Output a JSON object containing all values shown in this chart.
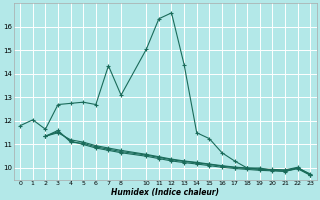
{
  "xlabel": "Humidex (Indice chaleur)",
  "bg_color": "#b3e8e8",
  "grid_color": "#ffffff",
  "line_color": "#1a6b5a",
  "xlim": [
    -0.5,
    23.5
  ],
  "ylim": [
    9.5,
    17.0
  ],
  "xtick_positions": [
    0,
    1,
    2,
    3,
    4,
    5,
    6,
    7,
    8,
    10,
    11,
    12,
    13,
    14,
    15,
    16,
    17,
    18,
    19,
    20,
    21,
    22,
    23
  ],
  "xtick_labels": [
    "0",
    "1",
    "2",
    "3",
    "4",
    "5",
    "6",
    "7",
    "8",
    "10",
    "11",
    "12",
    "13",
    "14",
    "15",
    "16",
    "17",
    "18",
    "19",
    "20",
    "21",
    "22",
    "23"
  ],
  "ytick_positions": [
    10,
    11,
    12,
    13,
    14,
    15,
    16
  ],
  "ytick_labels": [
    "10",
    "11",
    "12",
    "13",
    "14",
    "15",
    "16"
  ],
  "series1_x": [
    0,
    1,
    2,
    3,
    4,
    5,
    6,
    7,
    8,
    10,
    11,
    12,
    13,
    14,
    15,
    16,
    17,
    18,
    19,
    20,
    21,
    22,
    23
  ],
  "series1_y": [
    11.8,
    12.05,
    11.65,
    12.7,
    12.75,
    12.8,
    12.7,
    14.35,
    13.1,
    15.05,
    16.35,
    16.6,
    14.4,
    11.5,
    11.25,
    10.65,
    10.3,
    10.0,
    10.0,
    9.9,
    9.85,
    10.0,
    9.75
  ],
  "series2_x": [
    2,
    3,
    4,
    5,
    6,
    7,
    8,
    10,
    11,
    12,
    13,
    14,
    15,
    16,
    17,
    18,
    19,
    20,
    21,
    22,
    23
  ],
  "series2_y": [
    11.35,
    11.6,
    11.1,
    11.05,
    10.9,
    10.8,
    10.7,
    10.55,
    10.45,
    10.35,
    10.28,
    10.22,
    10.15,
    10.08,
    10.02,
    9.98,
    9.94,
    9.92,
    9.9,
    10.0,
    9.72
  ],
  "series3_x": [
    2,
    3,
    4,
    5,
    6,
    7,
    8,
    10,
    11,
    12,
    13,
    14,
    15,
    16,
    17,
    18,
    19,
    20,
    21,
    22,
    23
  ],
  "series3_y": [
    11.35,
    11.55,
    11.15,
    11.0,
    10.85,
    10.75,
    10.65,
    10.5,
    10.4,
    10.3,
    10.23,
    10.17,
    10.1,
    10.03,
    9.98,
    9.94,
    9.9,
    9.88,
    9.86,
    9.97,
    9.69
  ],
  "series4_x": [
    2,
    3,
    4,
    5,
    6,
    7,
    8,
    10,
    11,
    12,
    13,
    14,
    15,
    16,
    17,
    18,
    19,
    20,
    21,
    22,
    23
  ],
  "series4_y": [
    11.35,
    11.5,
    11.2,
    11.1,
    10.95,
    10.85,
    10.75,
    10.58,
    10.48,
    10.38,
    10.3,
    10.24,
    10.17,
    10.1,
    10.04,
    10.0,
    9.96,
    9.94,
    9.92,
    10.03,
    9.71
  ]
}
